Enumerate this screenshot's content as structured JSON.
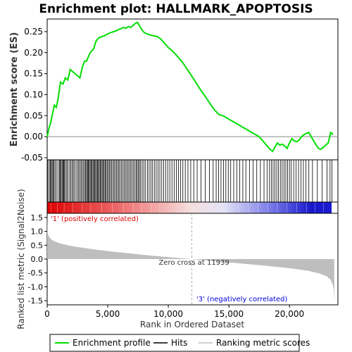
{
  "chart_data": {
    "type": "line",
    "title": "Enrichment plot: HALLMARK_APOPTOSIS",
    "xlabel": "Rank in Ordered Dataset",
    "xlim": [
      0,
      24000
    ],
    "x_ticks": [
      "0",
      "5,000",
      "10,000",
      "15,000",
      "20,000"
    ],
    "x_tick_values": [
      0,
      5000,
      10000,
      15000,
      20000
    ],
    "es_panel": {
      "ylabel": "Enrichment score (ES)",
      "ylim": [
        -0.055,
        0.28
      ],
      "y_ticks": [
        "-0.05",
        "0.00",
        "0.05",
        "0.10",
        "0.15",
        "0.20",
        "0.25"
      ],
      "y_tick_values": [
        -0.05,
        0.0,
        0.05,
        0.1,
        0.15,
        0.2,
        0.25
      ],
      "series": [
        {
          "name": "Enrichment profile",
          "color": "#00dd00",
          "x": [
            0,
            150,
            300,
            450,
            600,
            750,
            900,
            1000,
            1100,
            1300,
            1500,
            1700,
            1900,
            2100,
            2300,
            2500,
            2700,
            2900,
            3100,
            3250,
            3400,
            3550,
            3700,
            3850,
            4000,
            4150,
            4300,
            4500,
            4700,
            4900,
            5100,
            5300,
            5500,
            5700,
            5900,
            6100,
            6300,
            6500,
            6700,
            6900,
            7100,
            7300,
            7450,
            7600,
            7800,
            8000,
            8200,
            8500,
            8800,
            9100,
            9400,
            9700,
            10000,
            10300,
            10600,
            10900,
            11200,
            11500,
            11800,
            12100,
            12400,
            12700,
            13000,
            13300,
            13600,
            13900,
            14200,
            14500,
            14800,
            15100,
            15400,
            15700,
            16000,
            16300,
            16600,
            16900,
            17200,
            17500,
            17800,
            18100,
            18400,
            18600,
            18800,
            19000,
            19200,
            19400,
            19600,
            19800,
            20000,
            20200,
            20400,
            20600,
            20800,
            21000,
            21200,
            21400,
            21600,
            21800,
            22000,
            22200,
            22400,
            22600,
            22800,
            23000,
            23200,
            23400,
            23600
          ],
          "y": [
            0.0,
            0.02,
            0.035,
            0.055,
            0.075,
            0.07,
            0.09,
            0.11,
            0.13,
            0.125,
            0.14,
            0.135,
            0.16,
            0.155,
            0.15,
            0.145,
            0.14,
            0.165,
            0.18,
            0.18,
            0.19,
            0.2,
            0.205,
            0.21,
            0.225,
            0.232,
            0.236,
            0.238,
            0.24,
            0.243,
            0.246,
            0.248,
            0.25,
            0.252,
            0.255,
            0.257,
            0.26,
            0.258,
            0.262,
            0.26,
            0.265,
            0.27,
            0.272,
            0.265,
            0.255,
            0.248,
            0.245,
            0.242,
            0.24,
            0.238,
            0.232,
            0.222,
            0.212,
            0.205,
            0.196,
            0.186,
            0.176,
            0.163,
            0.15,
            0.137,
            0.123,
            0.11,
            0.098,
            0.085,
            0.072,
            0.061,
            0.052,
            0.05,
            0.045,
            0.04,
            0.035,
            0.03,
            0.025,
            0.02,
            0.015,
            0.01,
            0.005,
            0.0,
            -0.01,
            -0.02,
            -0.03,
            -0.035,
            -0.025,
            -0.015,
            -0.02,
            -0.018,
            -0.022,
            -0.028,
            -0.015,
            -0.005,
            -0.01,
            -0.012,
            -0.008,
            0.0,
            0.005,
            0.008,
            0.01,
            0.0,
            -0.01,
            -0.02,
            -0.028,
            -0.03,
            -0.025,
            -0.02,
            -0.015,
            0.01,
            0.005
          ]
        }
      ]
    },
    "hits_panel": {
      "legend_label": "Hits",
      "hit_positions": [
        60,
        180,
        270,
        330,
        410,
        480,
        560,
        650,
        760,
        890,
        1010,
        1080,
        1150,
        1230,
        1300,
        1370,
        1420,
        1520,
        1620,
        1720,
        1850,
        1950,
        2050,
        2150,
        2250,
        2380,
        2500,
        2600,
        2700,
        2800,
        2900,
        3000,
        3100,
        3180,
        3260,
        3330,
        3400,
        3470,
        3550,
        3620,
        3700,
        3780,
        3850,
        3930,
        4000,
        4080,
        4150,
        4230,
        4300,
        4380,
        4460,
        4540,
        4620,
        4700,
        4780,
        4860,
        4950,
        5040,
        5130,
        5220,
        5320,
        5420,
        5520,
        5620,
        5720,
        5820,
        5920,
        6020,
        6130,
        6240,
        6350,
        6460,
        6570,
        6680,
        6790,
        6900,
        7010,
        7120,
        7230,
        7340,
        7430,
        7520,
        7620,
        7720,
        7850,
        7980,
        8120,
        8280,
        8420,
        8560,
        8700,
        8850,
        9000,
        9150,
        9300,
        9460,
        9620,
        9780,
        9950,
        10120,
        10300,
        10480,
        10660,
        10840,
        11020,
        11200,
        11400,
        11620,
        11850,
        12100,
        12380,
        12700,
        13050,
        13400,
        13700,
        13950,
        14150,
        14350,
        14550,
        14750,
        14950,
        15150,
        15400,
        15650,
        15900,
        16150,
        16400,
        16700,
        17000,
        17300,
        17600,
        17900,
        18150,
        18350,
        18500,
        18650,
        18800,
        18950,
        19100,
        19250,
        19400,
        19550,
        19700,
        19850,
        20000,
        20150,
        20350,
        20550,
        20750,
        20950,
        21150,
        21350,
        21600,
        21900,
        22300,
        22700,
        23100,
        23350,
        23500
      ]
    },
    "heatmap_labels": {
      "positive": "'1' (positively correlated)",
      "negative": "'3' (negatively correlated)",
      "positive_color": "#dd0000",
      "negative_color": "#0000dd"
    },
    "metric_panel": {
      "ylabel": "Ranked list metric (Signal2Noise)",
      "ylim": [
        -1.65,
        1.65
      ],
      "y_ticks": [
        "-1.5",
        "-1.0",
        "-0.5",
        "0.0",
        "0.5",
        "1.0",
        "1.5"
      ],
      "y_tick_values": [
        -1.5,
        -1.0,
        -0.5,
        0.0,
        0.5,
        1.0,
        1.5
      ],
      "zero_cross_label": "Zero cross at 11939",
      "zero_cross": 11939,
      "n_genes": 23700,
      "curve_x": [
        0,
        30,
        100,
        250,
        500,
        1000,
        2000,
        4000,
        6000,
        8000,
        10000,
        11939,
        14000,
        16000,
        18000,
        20000,
        21500,
        22500,
        23100,
        23400,
        23550,
        23650,
        23700
      ],
      "curve_y": [
        1.65,
        0.95,
        0.85,
        0.75,
        0.66,
        0.57,
        0.47,
        0.34,
        0.24,
        0.15,
        0.07,
        0.0,
        -0.08,
        -0.16,
        -0.24,
        -0.33,
        -0.42,
        -0.52,
        -0.63,
        -0.75,
        -0.9,
        -1.1,
        -1.5
      ],
      "fill_color": "#bebebe"
    },
    "legend": [
      {
        "label": "Enrichment profile",
        "color": "#00dd00"
      },
      {
        "label": "Hits",
        "color": "#000000"
      },
      {
        "label": "Ranking metric scores",
        "color": "#bebebe"
      }
    ]
  }
}
